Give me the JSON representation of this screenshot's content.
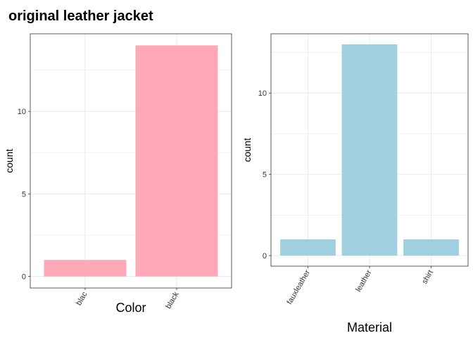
{
  "title": "original leather jacket",
  "colors": {
    "color_bars": "#ffa8b8",
    "material_bars": "#a0d0e0",
    "grid": "#ebebeb",
    "panel_border": "#333333"
  },
  "chart_data": [
    {
      "type": "bar",
      "title": "",
      "xlabel": "Color",
      "ylabel": "count",
      "categories": [
        "blac",
        "black"
      ],
      "values": [
        1,
        14
      ],
      "ylim": [
        -0.7,
        14.7
      ],
      "yticks": [
        0,
        5,
        10
      ],
      "grid": true,
      "legend": "none"
    },
    {
      "type": "bar",
      "title": "",
      "xlabel": "Material",
      "ylabel": "count",
      "categories": [
        "fauxleather",
        "leather",
        "shirt"
      ],
      "values": [
        1,
        13,
        1
      ],
      "ylim": [
        -0.65,
        13.65
      ],
      "yticks": [
        0,
        5,
        10
      ],
      "grid": true,
      "legend": "none"
    }
  ]
}
